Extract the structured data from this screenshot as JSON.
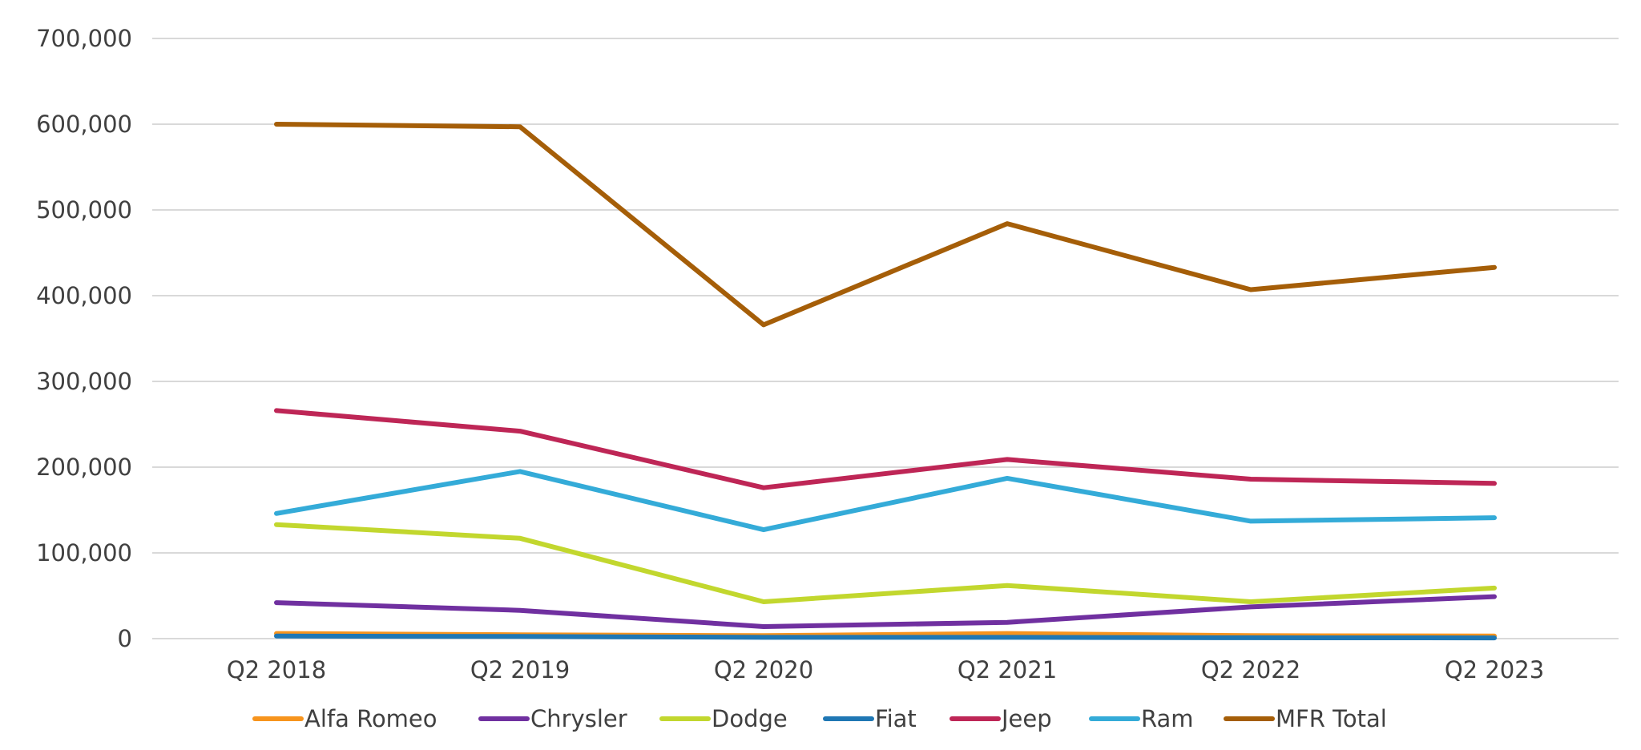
{
  "chart_data": {
    "type": "line",
    "title": "",
    "xlabel": "",
    "ylabel": "",
    "categories": [
      "Q2 2018",
      "Q2 2019",
      "Q2 2020",
      "Q2 2021",
      "Q2 2022",
      "Q2 2023"
    ],
    "ylim": [
      0,
      700000
    ],
    "yticks": [
      0,
      100000,
      200000,
      300000,
      400000,
      500000,
      600000,
      700000
    ],
    "ytick_labels": [
      "0",
      "100,000",
      "200,000",
      "300,000",
      "400,000",
      "500,000",
      "600,000",
      "700,000"
    ],
    "grid": true,
    "legend_position": "bottom",
    "series": [
      {
        "name": "Alfa Romeo",
        "color": "#F7941D",
        "values": [
          6000,
          4500,
          3500,
          6000,
          3500,
          3000
        ]
      },
      {
        "name": "Chrysler",
        "color": "#7030A0",
        "values": [
          42000,
          33000,
          14000,
          19000,
          37000,
          49000
        ]
      },
      {
        "name": "Dodge",
        "color": "#C2D72E",
        "values": [
          133000,
          117000,
          43000,
          62000,
          43000,
          59000
        ]
      },
      {
        "name": "Fiat",
        "color": "#1F77B4",
        "values": [
          3000,
          2500,
          1500,
          1500,
          1000,
          800
        ]
      },
      {
        "name": "Jeep",
        "color": "#BE2656",
        "values": [
          266000,
          242000,
          176000,
          209000,
          186000,
          181000
        ]
      },
      {
        "name": "Ram",
        "color": "#34ABD8",
        "values": [
          146000,
          195000,
          127000,
          187000,
          137000,
          141000
        ]
      },
      {
        "name": "MFR Total",
        "color": "#A55E08",
        "values": [
          600000,
          597000,
          366000,
          484000,
          407000,
          433000
        ]
      }
    ]
  }
}
